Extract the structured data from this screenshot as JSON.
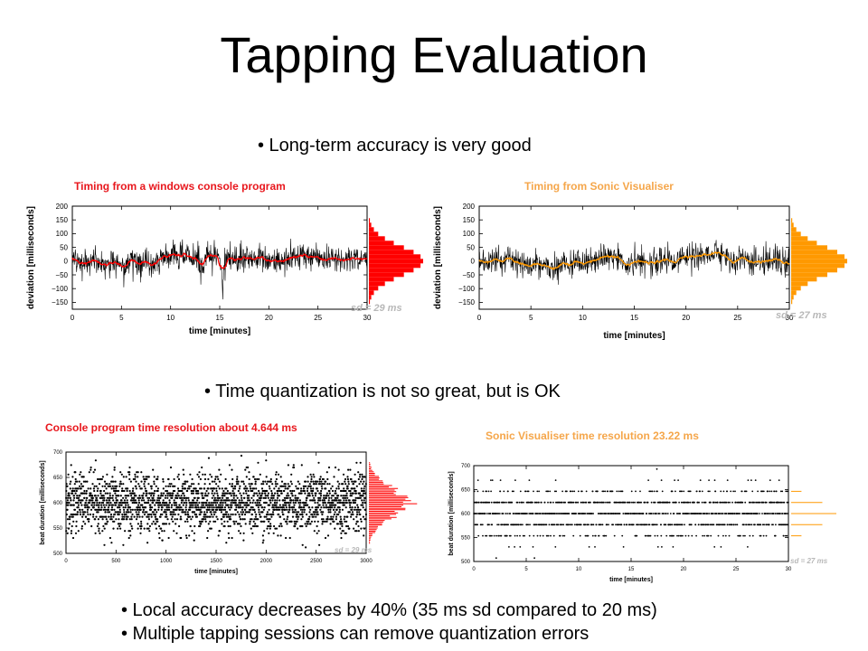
{
  "slide": {
    "title": "Tapping Evaluation",
    "bullet_1": "• Long-term accuracy is very good",
    "bullet_2": "• Time quantization is not so great, but is OK",
    "bullet_3": "• Local accuracy decreases by 40% (35 ms sd compared to 20 ms)",
    "bullet_4": "• Multiple tapping sessions can remove quantization errors"
  },
  "captions": {
    "top_left": "Timing from a windows console program",
    "top_right": "Timing from Sonic Visualiser",
    "bottom_left": "Console program time resolution about 4.644 ms",
    "bottom_right": "Sonic Visualiser time resolution 23.22 ms"
  },
  "colors": {
    "red": "#ff0000",
    "orange": "#ff9900",
    "caption_red": "#e8171d",
    "caption_orange": "#f5a64a"
  },
  "chart_data": [
    {
      "id": "top-left",
      "type": "line",
      "xlabel": "time [minutes]",
      "ylabel": "deviation [milliseconds]",
      "xlim": [
        0,
        30
      ],
      "ylim": [
        -175,
        200
      ],
      "xticks": [
        0,
        5,
        10,
        15,
        20,
        25,
        30
      ],
      "yticks": [
        -150,
        -100,
        -50,
        0,
        50,
        100,
        150,
        200
      ],
      "watermark": "sd = 29 ms",
      "series": [
        {
          "role": "raw",
          "color": "#000000",
          "sd": 29
        },
        {
          "role": "smoothed",
          "color": "#ff0000"
        }
      ],
      "histogram": {
        "color": "#ff0000",
        "sd": 29
      }
    },
    {
      "id": "top-right",
      "type": "line",
      "xlabel": "time [minutes]",
      "ylabel": "deviation [milliseconds]",
      "xlim": [
        0,
        30
      ],
      "ylim": [
        -175,
        200
      ],
      "xticks": [
        0,
        5,
        10,
        15,
        20,
        25,
        30
      ],
      "yticks": [
        -150,
        -100,
        -50,
        0,
        50,
        100,
        150,
        200
      ],
      "watermark": "sd = 27 ms",
      "series": [
        {
          "role": "raw",
          "color": "#000000",
          "sd": 27
        },
        {
          "role": "smoothed",
          "color": "#ff9900"
        }
      ],
      "histogram": {
        "color": "#ff9900",
        "sd": 27
      }
    },
    {
      "id": "bottom-left",
      "type": "scatter",
      "xlabel": "time [minutes]",
      "ylabel": "beat duration [milliseconds]",
      "xlim": [
        0,
        3000
      ],
      "ylim": [
        500,
        700
      ],
      "xticks": [
        0,
        500,
        1000,
        1500,
        2000,
        2500,
        3000
      ],
      "yticks": [
        500,
        550,
        600,
        650,
        700
      ],
      "watermark": "sd = 29 ms",
      "series": [
        {
          "name": "",
          "mean": 600,
          "sd": 29,
          "quantum_ms": 4.644
        }
      ],
      "histogram": {
        "color": "#ff0000"
      }
    },
    {
      "id": "bottom-right",
      "type": "scatter",
      "xlabel": "time [minutes]",
      "ylabel": "beat duration [milliseconds]",
      "xlim": [
        0,
        30
      ],
      "ylim": [
        500,
        700
      ],
      "xticks": [
        0,
        5,
        10,
        15,
        20,
        25,
        30
      ],
      "yticks": [
        500,
        550,
        600,
        650,
        700
      ],
      "watermark": "sd = 27 ms",
      "series": [
        {
          "name": "",
          "mean": 600,
          "sd": 27,
          "quantum_ms": 23.22
        }
      ],
      "histogram": {
        "color": "#ff9900"
      }
    }
  ]
}
